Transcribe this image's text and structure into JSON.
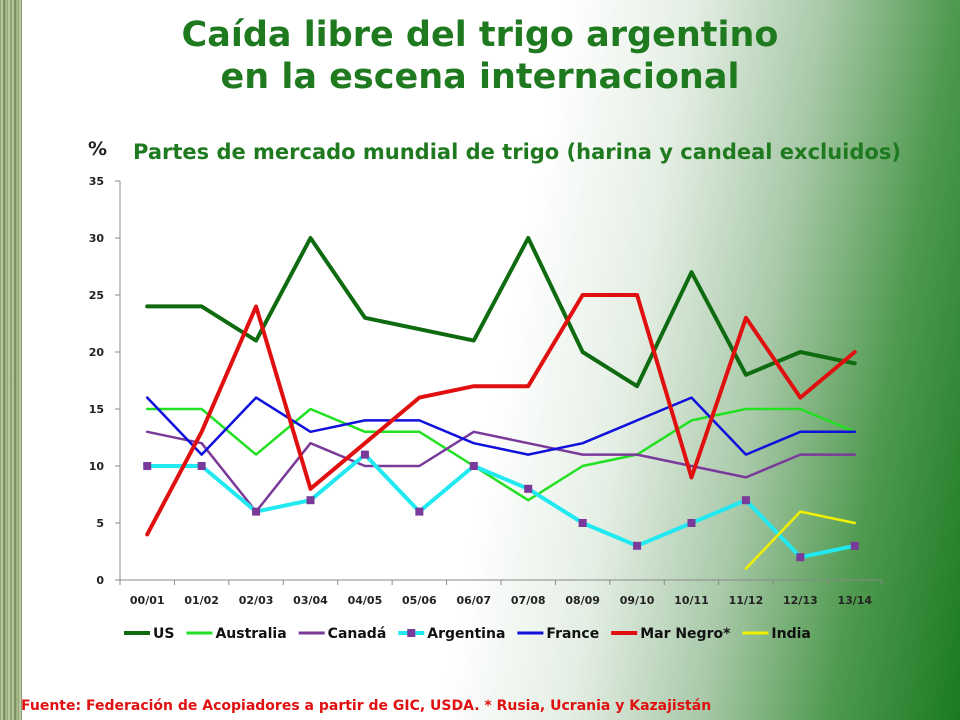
{
  "header": {
    "title_line1": "Caída libre del trigo argentino",
    "title_line2": "en la escena internacional"
  },
  "chart_header": {
    "unit": "%",
    "subtitle": "Partes de mercado mundial de trigo (harina y candeal excluidos)"
  },
  "source": "Fuente:  Federación de Acopiadores a partir de GIC, USDA. * Rusia, Ucrania y Kazajistán",
  "colors": {
    "title": "#1f7a1f",
    "source": "#e01010"
  },
  "chart_data": {
    "type": "line",
    "title": "Partes de mercado mundial de trigo (harina y candeal excluidos)",
    "ylabel": "%",
    "xlabel": "",
    "ylim": [
      0,
      35
    ],
    "yticks": [
      0,
      5,
      10,
      15,
      20,
      25,
      30,
      35
    ],
    "grid": false,
    "legend_position": "bottom",
    "categories": [
      "00/01",
      "01/02",
      "02/03",
      "03/04",
      "04/05",
      "05/06",
      "06/07",
      "07/08",
      "08/09",
      "09/10",
      "10/11",
      "11/12",
      "12/13",
      "13/14"
    ],
    "series": [
      {
        "name": "US",
        "color": "#0e6b10",
        "values": [
          24,
          24,
          21,
          30,
          23,
          22,
          21,
          30,
          20,
          17,
          27,
          18,
          20,
          19
        ]
      },
      {
        "name": "Australia",
        "color": "#22e022",
        "values": [
          15,
          15,
          11,
          15,
          13,
          13,
          10,
          7,
          10,
          11,
          14,
          15,
          15,
          13
        ]
      },
      {
        "name": "Canadá",
        "color": "#7a3a9a",
        "values": [
          13,
          12,
          6,
          12,
          10,
          10,
          13,
          12,
          11,
          11,
          10,
          9,
          11,
          11
        ]
      },
      {
        "name": "Argentina",
        "color": "#22e8f0",
        "marker": "square",
        "marker_color": "#7a3a9a",
        "values": [
          10,
          10,
          6,
          7,
          11,
          6,
          10,
          8,
          5,
          3,
          5,
          7,
          2,
          3
        ]
      },
      {
        "name": "France",
        "color": "#1010dd",
        "values": [
          16,
          11,
          16,
          13,
          14,
          14,
          12,
          11,
          12,
          14,
          16,
          11,
          13,
          13
        ]
      },
      {
        "name": "Mar Negro*",
        "color": "#e01010",
        "values": [
          4,
          13,
          24,
          8,
          12,
          16,
          17,
          17,
          25,
          25,
          9,
          23,
          16,
          20
        ]
      },
      {
        "name": "India",
        "color": "#f0f000",
        "values": [
          null,
          null,
          null,
          null,
          null,
          null,
          null,
          null,
          null,
          null,
          null,
          1,
          6,
          5
        ]
      }
    ]
  }
}
